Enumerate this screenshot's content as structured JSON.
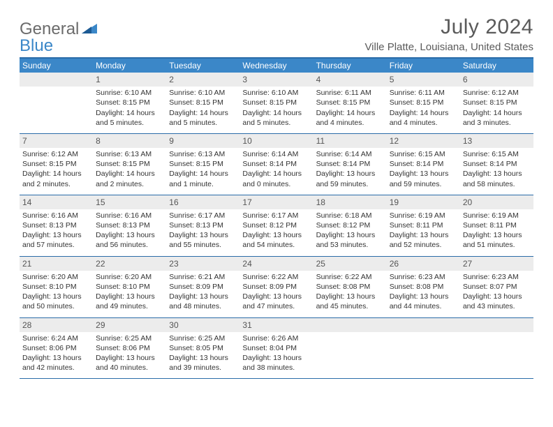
{
  "logo": {
    "general": "General",
    "blue": "Blue"
  },
  "title": "July 2024",
  "location": "Ville Platte, Louisiana, United States",
  "weekdays": [
    "Sunday",
    "Monday",
    "Tuesday",
    "Wednesday",
    "Thursday",
    "Friday",
    "Saturday"
  ],
  "colors": {
    "header_bg": "#3b87c8",
    "border": "#2a6ca8",
    "daynum_bg": "#ececec",
    "text": "#333333",
    "title_text": "#5a5a5a"
  },
  "days": [
    {
      "n": "",
      "empty": true
    },
    {
      "n": "1",
      "sr": "6:10 AM",
      "ss": "8:15 PM",
      "dl": "14 hours and 5 minutes."
    },
    {
      "n": "2",
      "sr": "6:10 AM",
      "ss": "8:15 PM",
      "dl": "14 hours and 5 minutes."
    },
    {
      "n": "3",
      "sr": "6:10 AM",
      "ss": "8:15 PM",
      "dl": "14 hours and 5 minutes."
    },
    {
      "n": "4",
      "sr": "6:11 AM",
      "ss": "8:15 PM",
      "dl": "14 hours and 4 minutes."
    },
    {
      "n": "5",
      "sr": "6:11 AM",
      "ss": "8:15 PM",
      "dl": "14 hours and 4 minutes."
    },
    {
      "n": "6",
      "sr": "6:12 AM",
      "ss": "8:15 PM",
      "dl": "14 hours and 3 minutes."
    },
    {
      "n": "7",
      "sr": "6:12 AM",
      "ss": "8:15 PM",
      "dl": "14 hours and 2 minutes."
    },
    {
      "n": "8",
      "sr": "6:13 AM",
      "ss": "8:15 PM",
      "dl": "14 hours and 2 minutes."
    },
    {
      "n": "9",
      "sr": "6:13 AM",
      "ss": "8:15 PM",
      "dl": "14 hours and 1 minute."
    },
    {
      "n": "10",
      "sr": "6:14 AM",
      "ss": "8:14 PM",
      "dl": "14 hours and 0 minutes."
    },
    {
      "n": "11",
      "sr": "6:14 AM",
      "ss": "8:14 PM",
      "dl": "13 hours and 59 minutes."
    },
    {
      "n": "12",
      "sr": "6:15 AM",
      "ss": "8:14 PM",
      "dl": "13 hours and 59 minutes."
    },
    {
      "n": "13",
      "sr": "6:15 AM",
      "ss": "8:14 PM",
      "dl": "13 hours and 58 minutes."
    },
    {
      "n": "14",
      "sr": "6:16 AM",
      "ss": "8:13 PM",
      "dl": "13 hours and 57 minutes."
    },
    {
      "n": "15",
      "sr": "6:16 AM",
      "ss": "8:13 PM",
      "dl": "13 hours and 56 minutes."
    },
    {
      "n": "16",
      "sr": "6:17 AM",
      "ss": "8:13 PM",
      "dl": "13 hours and 55 minutes."
    },
    {
      "n": "17",
      "sr": "6:17 AM",
      "ss": "8:12 PM",
      "dl": "13 hours and 54 minutes."
    },
    {
      "n": "18",
      "sr": "6:18 AM",
      "ss": "8:12 PM",
      "dl": "13 hours and 53 minutes."
    },
    {
      "n": "19",
      "sr": "6:19 AM",
      "ss": "8:11 PM",
      "dl": "13 hours and 52 minutes."
    },
    {
      "n": "20",
      "sr": "6:19 AM",
      "ss": "8:11 PM",
      "dl": "13 hours and 51 minutes."
    },
    {
      "n": "21",
      "sr": "6:20 AM",
      "ss": "8:10 PM",
      "dl": "13 hours and 50 minutes."
    },
    {
      "n": "22",
      "sr": "6:20 AM",
      "ss": "8:10 PM",
      "dl": "13 hours and 49 minutes."
    },
    {
      "n": "23",
      "sr": "6:21 AM",
      "ss": "8:09 PM",
      "dl": "13 hours and 48 minutes."
    },
    {
      "n": "24",
      "sr": "6:22 AM",
      "ss": "8:09 PM",
      "dl": "13 hours and 47 minutes."
    },
    {
      "n": "25",
      "sr": "6:22 AM",
      "ss": "8:08 PM",
      "dl": "13 hours and 45 minutes."
    },
    {
      "n": "26",
      "sr": "6:23 AM",
      "ss": "8:08 PM",
      "dl": "13 hours and 44 minutes."
    },
    {
      "n": "27",
      "sr": "6:23 AM",
      "ss": "8:07 PM",
      "dl": "13 hours and 43 minutes."
    },
    {
      "n": "28",
      "sr": "6:24 AM",
      "ss": "8:06 PM",
      "dl": "13 hours and 42 minutes."
    },
    {
      "n": "29",
      "sr": "6:25 AM",
      "ss": "8:06 PM",
      "dl": "13 hours and 40 minutes."
    },
    {
      "n": "30",
      "sr": "6:25 AM",
      "ss": "8:05 PM",
      "dl": "13 hours and 39 minutes."
    },
    {
      "n": "31",
      "sr": "6:26 AM",
      "ss": "8:04 PM",
      "dl": "13 hours and 38 minutes."
    },
    {
      "n": "",
      "empty": true
    },
    {
      "n": "",
      "empty": true
    },
    {
      "n": "",
      "empty": true
    }
  ],
  "labels": {
    "sunrise": "Sunrise:",
    "sunset": "Sunset:",
    "daylight": "Daylight:"
  }
}
